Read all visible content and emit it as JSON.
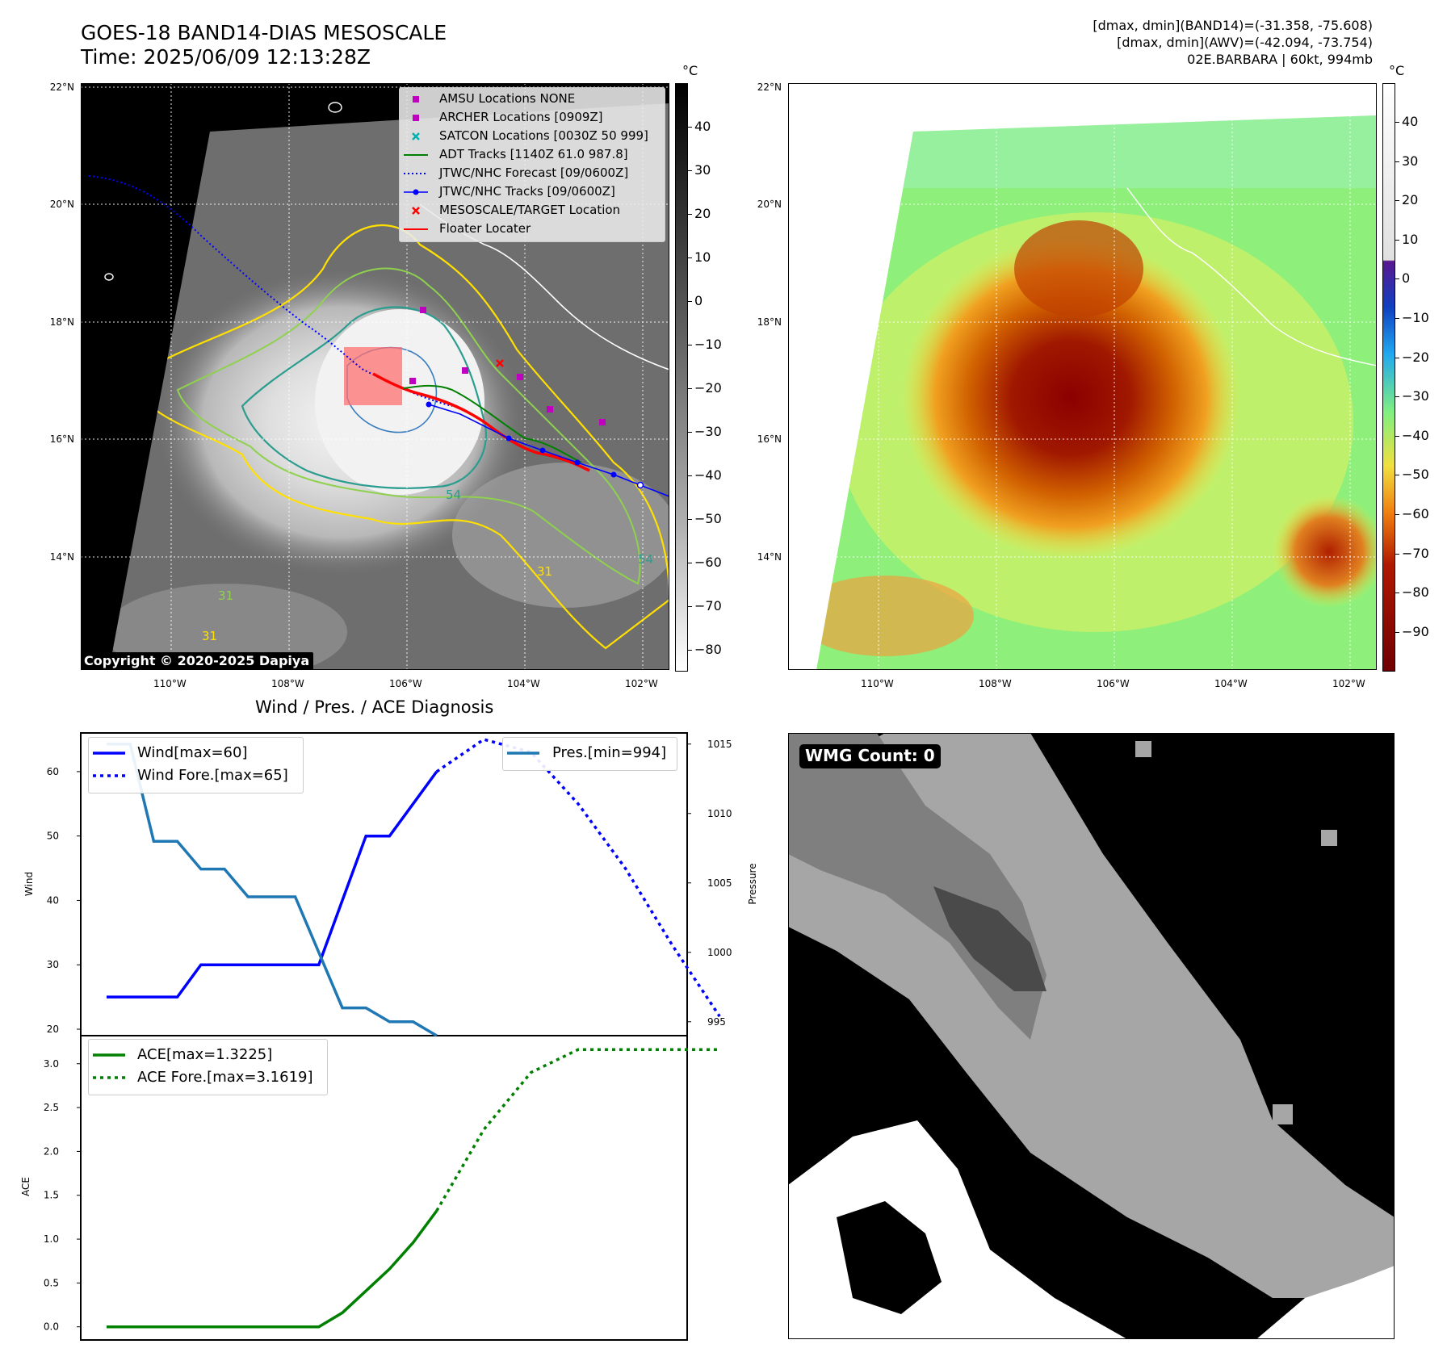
{
  "header": {
    "title": "GOES-18 BAND14-DIAS MESOSCALE",
    "time": "Time: 2025/06/09 12:13:28Z",
    "info_line1": "[dmax, dmin](BAND14)=(-31.358, -75.608)",
    "info_line2": "[dmax, dmin](AWV)=(-42.094, -73.754)",
    "info_line3": "02E.BARBARA | 60kt, 994mb"
  },
  "maps": {
    "lat_labels": [
      "22°N",
      "20°N",
      "18°N",
      "16°N",
      "14°N"
    ],
    "lon_labels": [
      "110°W",
      "108°W",
      "106°W",
      "104°W",
      "102°W"
    ],
    "copyright": "Copyright © 2020-2025 Dapiya",
    "contour_labels": [
      "54",
      "31",
      "31",
      "31",
      "54"
    ],
    "legend": [
      {
        "label": "AMSU Locations NONE",
        "color": "#c000c0",
        "symbol": "square"
      },
      {
        "label": "ARCHER Locations [0909Z]",
        "color": "#c000c0",
        "symbol": "square"
      },
      {
        "label": "SATCON Locations [0030Z 50 999]",
        "color": "#00b0b0",
        "symbol": "x"
      },
      {
        "label": "ADT Tracks [1140Z 61.0 987.8]",
        "color": "#008000",
        "symbol": "line"
      },
      {
        "label": "JTWC/NHC Forecast [09/0600Z]",
        "color": "#0000ff",
        "symbol": "dotted"
      },
      {
        "label": "JTWC/NHC Tracks [09/0600Z]",
        "color": "#0000ff",
        "symbol": "line-dot"
      },
      {
        "label": "MESOSCALE/TARGET Location",
        "color": "#ff0000",
        "symbol": "x"
      },
      {
        "label": "Floater Locater",
        "color": "#ff0000",
        "symbol": "line"
      }
    ],
    "colorbar_unit": "°C",
    "left_colorbar_ticks": [
      "40",
      "30",
      "20",
      "10",
      "0",
      "−10",
      "−20",
      "−30",
      "−40",
      "−50",
      "−60",
      "−70",
      "−80"
    ],
    "right_colorbar_ticks": [
      "40",
      "30",
      "20",
      "10",
      "0",
      "−10",
      "−20",
      "−30",
      "−40",
      "−50",
      "−60",
      "−70",
      "−80",
      "−90"
    ]
  },
  "diagnosis": {
    "title": "Wind / Pres. / ACE Diagnosis",
    "wind_ylabel": "Wind",
    "pressure_ylabel": "Pressure",
    "ace_ylabel": "ACE",
    "wind_ticks": [
      "60",
      "50",
      "40",
      "30",
      "20"
    ],
    "pressure_ticks": [
      "1015",
      "1010",
      "1005",
      "1000",
      "995"
    ],
    "ace_ticks": [
      "3.0",
      "2.5",
      "2.0",
      "1.5",
      "1.0",
      "0.5",
      "0.0"
    ],
    "legend_wind": "Wind[max=60]",
    "legend_wind_fore": "Wind Fore.[max=65]",
    "legend_pres": "Pres.[min=994]",
    "legend_ace": "ACE[max=1.3225]",
    "legend_ace_fore": "ACE Fore.[max=3.1619]"
  },
  "wmg": {
    "label": "WMG Count: 0"
  },
  "chart_data": [
    {
      "type": "line",
      "title": "Wind / Pres. / ACE Diagnosis",
      "ylabel": "Wind",
      "ylim": [
        19,
        66
      ],
      "series": [
        {
          "name": "Wind[max=60]",
          "x": [
            0,
            1,
            2,
            3,
            4,
            5,
            6,
            7,
            8,
            9,
            10,
            11,
            12,
            13,
            14
          ],
          "values": [
            25,
            25,
            25,
            25,
            30,
            30,
            30,
            30,
            30,
            30,
            40,
            50,
            50,
            55,
            60
          ],
          "color": "#0000ff",
          "style": "solid"
        },
        {
          "name": "Wind Fore.[max=65]",
          "x": [
            14,
            16,
            18,
            20,
            22,
            24,
            26
          ],
          "values": [
            60,
            65,
            63,
            55,
            45,
            33,
            22
          ],
          "color": "#0000ff",
          "style": "dotted"
        }
      ]
    },
    {
      "type": "line",
      "ylabel": "Pressure",
      "ylim": [
        994,
        1015.8
      ],
      "series": [
        {
          "name": "Pres.[min=994]",
          "x": [
            0,
            1,
            2,
            3,
            4,
            5,
            6,
            7,
            8,
            9,
            10,
            11,
            12,
            13,
            14
          ],
          "values": [
            1015,
            1015,
            1008,
            1008,
            1006,
            1006,
            1004,
            1004,
            1004,
            1000,
            996,
            996,
            995,
            995,
            994
          ],
          "color": "#1f77b4",
          "style": "solid"
        }
      ]
    },
    {
      "type": "line",
      "ylabel": "ACE",
      "ylim": [
        -0.15,
        3.32
      ],
      "series": [
        {
          "name": "ACE[max=1.3225]",
          "x": [
            0,
            1,
            2,
            3,
            4,
            5,
            6,
            7,
            8,
            9,
            10,
            11,
            12,
            13,
            14
          ],
          "values": [
            0,
            0,
            0,
            0,
            0,
            0,
            0,
            0,
            0,
            0,
            0.16,
            0.41,
            0.66,
            0.96,
            1.3225
          ],
          "color": "#008000",
          "style": "solid"
        },
        {
          "name": "ACE Fore.[max=3.1619]",
          "x": [
            14,
            16,
            18,
            20,
            22,
            24,
            26
          ],
          "values": [
            1.3225,
            2.25,
            2.9,
            3.1619,
            3.1619,
            3.1619,
            3.1619
          ],
          "color": "#008000",
          "style": "dotted"
        }
      ]
    }
  ]
}
